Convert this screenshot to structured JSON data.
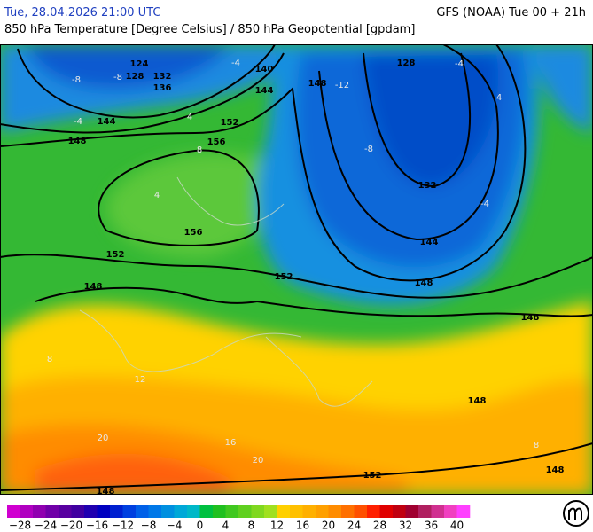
{
  "header": {
    "valid_time": "Tue, 28.04.2026 21:00 UTC",
    "model_run": "GFS (NOAA) Tue 00 + 21h",
    "title": "850 hPa Temperature [Degree Celsius] / 850 hPa Geopotential [gpdam]"
  },
  "map": {
    "contour_labels": [
      124,
      132,
      128,
      136,
      140,
      144,
      148,
      144,
      148,
      152,
      156,
      156,
      152,
      148,
      152,
      128,
      132,
      144,
      148,
      148,
      148,
      148,
      148,
      152
    ],
    "temperature_labels": [
      -8,
      -8,
      -4,
      -4,
      -12,
      -8,
      -4,
      -4,
      4,
      8,
      4,
      8,
      12,
      16,
      20,
      20,
      8,
      4
    ]
  },
  "colorbar": {
    "colors": [
      "#d000d0",
      "#b000c0",
      "#9000b0",
      "#7000a8",
      "#5800a0",
      "#4000a0",
      "#2000b0",
      "#0000c0",
      "#0020d0",
      "#0040e0",
      "#0060e8",
      "#0078e8",
      "#0090e0",
      "#00a8d8",
      "#00b8c8",
      "#00c040",
      "#20c020",
      "#40c820",
      "#60d020",
      "#80d820",
      "#a0e020",
      "#ffd000",
      "#ffc000",
      "#ffb000",
      "#ffa000",
      "#ff8c00",
      "#ff7000",
      "#ff5000",
      "#ff2000",
      "#e00000",
      "#c00010",
      "#a00030",
      "#b02060",
      "#d03090",
      "#f040c0",
      "#ff40ff"
    ],
    "ticks": [
      "−28",
      "−24",
      "−20",
      "−16",
      "−12",
      "−8",
      "−4",
      "0",
      "4",
      "8",
      "12",
      "16",
      "20",
      "24",
      "28",
      "32",
      "36",
      "40"
    ]
  }
}
